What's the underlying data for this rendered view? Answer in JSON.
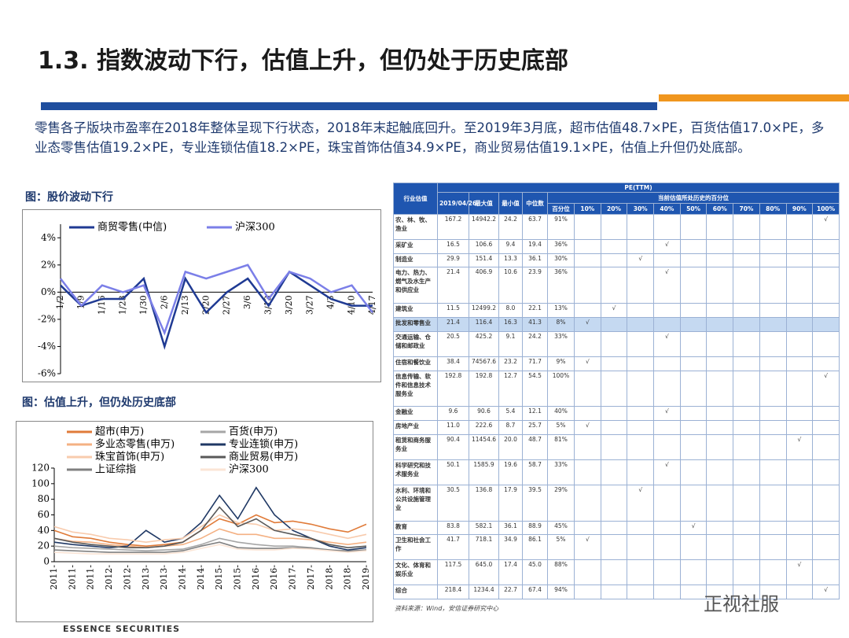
{
  "header": {
    "title": "1.3. 指数波动下行，估值上升，但仍处于历史底部"
  },
  "intro": "零售各子版块市盈率在2018年整体呈现下行状态，2018年末起触底回升。至2019年3月底，超市估值48.7×PE，百货估值17.0×PE，多业态零售估值19.2×PE，专业连锁估值18.2×PE，珠宝首饰估值34.9×PE，商业贸易估值19.1×PE，估值上升但仍处底部。",
  "chart_data": [
    {
      "type": "line",
      "title": "图：股价波动下行",
      "categories": [
        "1/2",
        "1/9",
        "1/16",
        "1/23",
        "1/30",
        "2/6",
        "2/13",
        "2/20",
        "2/27",
        "3/6",
        "3/13",
        "3/20",
        "3/27",
        "4/3",
        "4/10",
        "4/17"
      ],
      "series": [
        {
          "name": "商贸零售(中信)",
          "color": "#1f3a93",
          "values": [
            0.5,
            -1,
            -0.5,
            -0.5,
            1,
            -4,
            1,
            -1.5,
            0,
            1,
            -1,
            1.5,
            0.5,
            -0.5,
            -1,
            -1
          ]
        },
        {
          "name": "沪深300",
          "color": "#7b7fe8",
          "values": [
            1,
            -1,
            0.5,
            0,
            0.5,
            -3,
            1.5,
            1,
            1.5,
            2,
            -0.5,
            1.5,
            1,
            0,
            0.5,
            -1.5
          ]
        }
      ],
      "ylim": [
        -6,
        5
      ],
      "yticks": [
        {
          "value": 4,
          "label": "4%"
        },
        {
          "value": 2,
          "label": "2%"
        },
        {
          "value": 0,
          "label": "0%"
        },
        {
          "value": -2,
          "label": "-2%"
        },
        {
          "value": -4,
          "label": "-4%"
        },
        {
          "value": -6,
          "label": "-6%"
        }
      ]
    },
    {
      "type": "line",
      "title": "图：估值上升，但仍处历史底部",
      "categories": [
        "2011-",
        "2011-",
        "2011-",
        "2012-",
        "2012-",
        "2013-",
        "2013-",
        "2014-",
        "2014-",
        "2015-",
        "2015-",
        "2016-",
        "2016-",
        "2017-",
        "2017-",
        "2018-",
        "2018-",
        "2019-"
      ],
      "series": [
        {
          "name": "超市(申万)",
          "color": "#e07b39",
          "values": [
            40,
            32,
            30,
            25,
            22,
            20,
            22,
            25,
            40,
            55,
            48,
            60,
            50,
            52,
            48,
            42,
            38,
            48
          ]
        },
        {
          "name": "百货(申万)",
          "color": "#a6a6a6",
          "values": [
            20,
            18,
            17,
            16,
            15,
            14,
            15,
            16,
            22,
            30,
            25,
            22,
            20,
            20,
            18,
            15,
            14,
            15
          ]
        },
        {
          "name": "多业态零售(申万)",
          "color": "#f4b183",
          "values": [
            30,
            26,
            25,
            22,
            20,
            18,
            20,
            22,
            30,
            42,
            35,
            35,
            30,
            30,
            28,
            25,
            22,
            25
          ]
        },
        {
          "name": "专业连锁(申万)",
          "color": "#1f3864",
          "values": [
            25,
            22,
            20,
            18,
            20,
            40,
            25,
            30,
            50,
            85,
            55,
            95,
            60,
            40,
            30,
            20,
            15,
            18
          ]
        },
        {
          "name": "珠宝首饰(申万)",
          "color": "#f8cbad",
          "values": [
            45,
            38,
            35,
            30,
            28,
            25,
            28,
            30,
            45,
            60,
            50,
            48,
            40,
            42,
            40,
            35,
            30,
            35
          ]
        },
        {
          "name": "商业贸易(申万)",
          "color": "#595959",
          "values": [
            30,
            25,
            22,
            20,
            18,
            18,
            20,
            25,
            40,
            70,
            45,
            55,
            40,
            35,
            30,
            22,
            18,
            20
          ]
        },
        {
          "name": "上证综指",
          "color": "#808080",
          "values": [
            15,
            14,
            13,
            12,
            12,
            12,
            12,
            14,
            20,
            25,
            18,
            17,
            17,
            18,
            17,
            15,
            13,
            15
          ]
        },
        {
          "name": "沪深300",
          "color": "#fbe5d6",
          "values": [
            12,
            11,
            10,
            10,
            10,
            10,
            10,
            12,
            17,
            22,
            16,
            15,
            15,
            17,
            16,
            14,
            12,
            14
          ]
        }
      ],
      "ylim": [
        0,
        120
      ],
      "yticks": [
        0,
        20,
        40,
        60,
        80,
        100,
        120
      ]
    }
  ],
  "table": {
    "group": "PE(TTM)",
    "sub": "当前估值所处历史的百分位",
    "columns": [
      "行业估值",
      "2019/04/26",
      "最大值",
      "最小值",
      "中位数",
      "百分位",
      "10%",
      "20%",
      "30%",
      "40%",
      "50%",
      "60%",
      "70%",
      "80%",
      "90%",
      "100%"
    ],
    "rows": [
      [
        "农、林、牧、渔业",
        "167.2",
        "14942.2",
        "24.2",
        "63.7",
        "91%",
        null,
        null,
        null,
        null,
        null,
        null,
        null,
        null,
        null,
        "√"
      ],
      [
        "采矿业",
        "16.5",
        "106.6",
        "9.4",
        "19.4",
        "36%",
        null,
        null,
        null,
        "√",
        null,
        null,
        null,
        null,
        null,
        null
      ],
      [
        "制造业",
        "29.9",
        "151.4",
        "13.3",
        "36.1",
        "30%",
        null,
        null,
        "√",
        null,
        null,
        null,
        null,
        null,
        null,
        null
      ],
      [
        "电力、热力、燃气及水生产和供应业",
        "21.4",
        "406.9",
        "10.6",
        "23.9",
        "36%",
        null,
        null,
        null,
        "√",
        null,
        null,
        null,
        null,
        null,
        null
      ],
      [
        "建筑业",
        "11.5",
        "12499.2",
        "8.0",
        "22.1",
        "13%",
        null,
        "√",
        null,
        null,
        null,
        null,
        null,
        null,
        null,
        null
      ],
      [
        "批发和零售业",
        "21.4",
        "116.4",
        "16.3",
        "41.3",
        "8%",
        "√",
        null,
        null,
        null,
        null,
        null,
        null,
        null,
        null,
        null
      ],
      [
        "交通运输、仓储和邮政业",
        "20.5",
        "425.2",
        "9.1",
        "24.2",
        "33%",
        null,
        null,
        null,
        "√",
        null,
        null,
        null,
        null,
        null,
        null
      ],
      [
        "住宿和餐饮业",
        "38.4",
        "74567.6",
        "23.2",
        "71.7",
        "9%",
        "√",
        null,
        null,
        null,
        null,
        null,
        null,
        null,
        null,
        null
      ],
      [
        "信息传输、软件和信息技术服务业",
        "192.8",
        "192.8",
        "12.7",
        "54.5",
        "100%",
        null,
        null,
        null,
        null,
        null,
        null,
        null,
        null,
        null,
        "√"
      ],
      [
        "金融业",
        "9.6",
        "90.6",
        "5.4",
        "12.1",
        "40%",
        null,
        null,
        null,
        "√",
        null,
        null,
        null,
        null,
        null,
        null
      ],
      [
        "房地产业",
        "11.0",
        "222.6",
        "8.7",
        "25.7",
        "5%",
        "√",
        null,
        null,
        null,
        null,
        null,
        null,
        null,
        null,
        null
      ],
      [
        "租赁和商务服务业",
        "90.4",
        "11454.6",
        "20.0",
        "48.7",
        "81%",
        null,
        null,
        null,
        null,
        null,
        null,
        null,
        null,
        "√",
        null
      ],
      [
        "科学研究和技术服务业",
        "50.1",
        "1585.9",
        "19.6",
        "58.7",
        "33%",
        null,
        null,
        null,
        "√",
        null,
        null,
        null,
        null,
        null,
        null
      ],
      [
        "水利、环境和公共设施管理业",
        "30.5",
        "136.8",
        "17.9",
        "39.5",
        "29%",
        null,
        null,
        "√",
        null,
        null,
        null,
        null,
        null,
        null,
        null
      ],
      [
        "教育",
        "83.8",
        "582.1",
        "36.1",
        "88.9",
        "45%",
        null,
        null,
        null,
        null,
        "√",
        null,
        null,
        null,
        null,
        null
      ],
      [
        "卫生和社会工作",
        "41.7",
        "718.1",
        "34.9",
        "86.1",
        "5%",
        "√",
        null,
        null,
        null,
        null,
        null,
        null,
        null,
        null,
        null
      ],
      [
        "文化、体育和娱乐业",
        "117.5",
        "645.0",
        "17.4",
        "45.0",
        "88%",
        null,
        null,
        null,
        null,
        null,
        null,
        null,
        null,
        "√",
        null
      ],
      [
        "综合",
        "218.4",
        "1234.4",
        "22.7",
        "67.4",
        "94%",
        null,
        null,
        null,
        null,
        null,
        null,
        null,
        null,
        null,
        "√"
      ]
    ],
    "source": "资料来源：Wind，安信证券研究中心"
  },
  "footer": {
    "logo": "ESSENCE SECURITIES",
    "watermark": "正视社服"
  }
}
